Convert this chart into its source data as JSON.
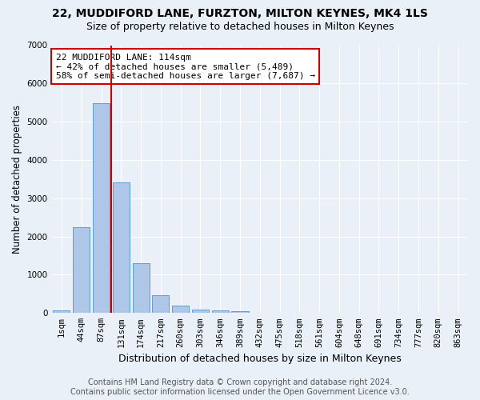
{
  "title": "22, MUDDIFORD LANE, FURZTON, MILTON KEYNES, MK4 1LS",
  "subtitle": "Size of property relative to detached houses in Milton Keynes",
  "xlabel": "Distribution of detached houses by size in Milton Keynes",
  "ylabel": "Number of detached properties",
  "footer_line1": "Contains HM Land Registry data © Crown copyright and database right 2024.",
  "footer_line2": "Contains public sector information licensed under the Open Government Licence v3.0.",
  "bar_labels": [
    "1sqm",
    "44sqm",
    "87sqm",
    "131sqm",
    "174sqm",
    "217sqm",
    "260sqm",
    "303sqm",
    "346sqm",
    "389sqm",
    "432sqm",
    "475sqm",
    "518sqm",
    "561sqm",
    "604sqm",
    "648sqm",
    "691sqm",
    "734sqm",
    "777sqm",
    "820sqm",
    "863sqm"
  ],
  "bar_values": [
    70,
    2250,
    5480,
    3420,
    1300,
    470,
    190,
    100,
    70,
    40,
    15,
    0,
    0,
    0,
    0,
    0,
    0,
    0,
    0,
    0,
    0
  ],
  "bar_color": "#aec6e8",
  "bar_edge_color": "#5a9fd4",
  "vline_color": "#cc0000",
  "vline_x_index": 2.5,
  "annotation_text": "22 MUDDIFORD LANE: 114sqm\n← 42% of detached houses are smaller (5,489)\n58% of semi-detached houses are larger (7,687) →",
  "annotation_box_color": "#ffffff",
  "annotation_box_edge": "#cc0000",
  "ylim": [
    0,
    7000
  ],
  "yticks": [
    0,
    1000,
    2000,
    3000,
    4000,
    5000,
    6000,
    7000
  ],
  "bg_color": "#eaf0f8",
  "axes_bg_color": "#eaf0f8",
  "grid_color": "#ffffff",
  "title_fontsize": 10,
  "subtitle_fontsize": 9,
  "xlabel_fontsize": 9,
  "ylabel_fontsize": 8.5,
  "tick_fontsize": 7.5,
  "annotation_fontsize": 8,
  "footer_fontsize": 7
}
